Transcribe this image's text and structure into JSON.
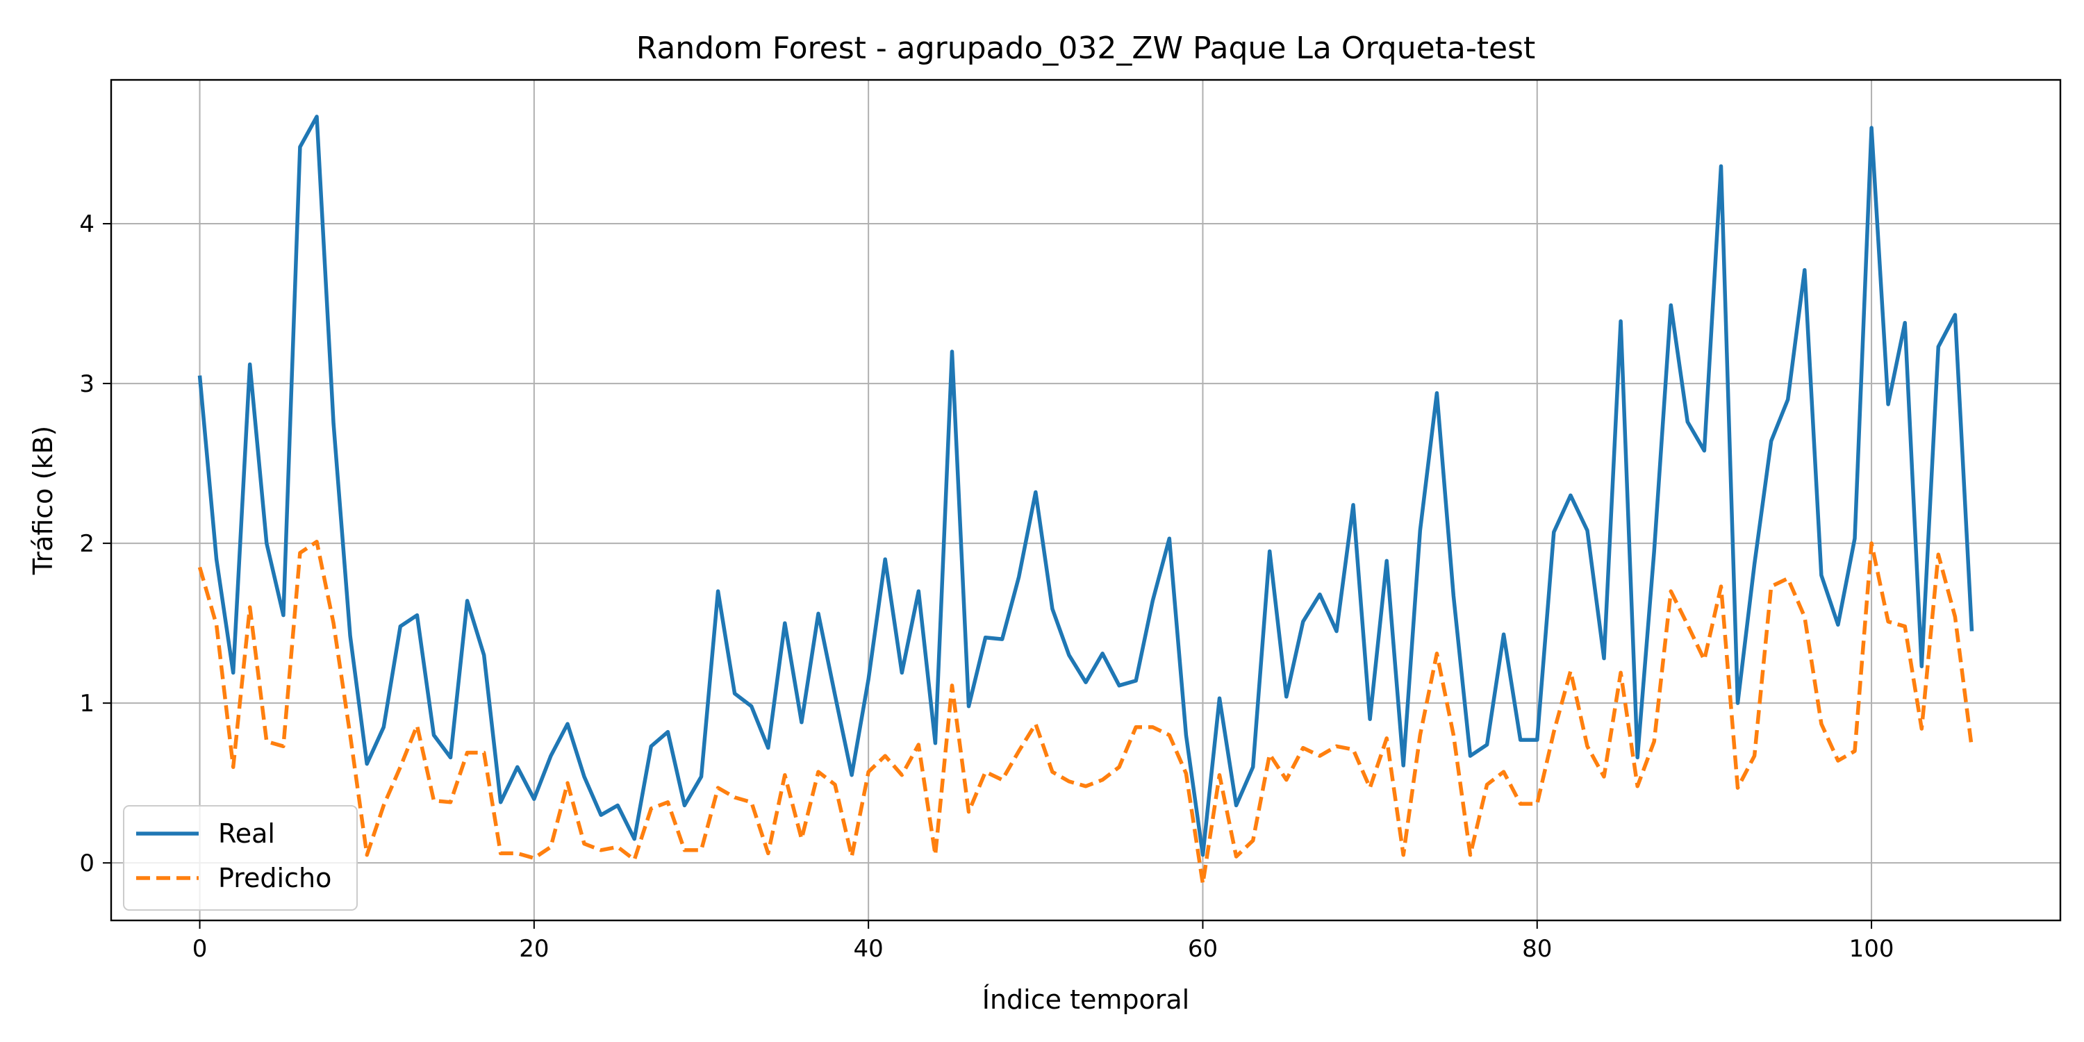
{
  "chart_data": {
    "type": "line",
    "title": "Random Forest - agrupado_032_ZW Paque La Orqueta-test",
    "xlabel": "Índice temporal",
    "ylabel": "Tráfico (kB)",
    "xlim": [
      -5.3,
      111.3
    ],
    "ylim": [
      -0.36,
      4.9
    ],
    "xticks": [
      0,
      20,
      40,
      60,
      80,
      100
    ],
    "yticks": [
      0,
      1,
      2,
      3,
      4
    ],
    "grid": true,
    "legend_position": "lower-left",
    "series": [
      {
        "name": "Real",
        "color": "#1f77b4",
        "style": "solid",
        "values": [
          3.05,
          1.9,
          1.19,
          3.12,
          2.0,
          1.55,
          4.48,
          4.67,
          2.75,
          1.42,
          0.62,
          0.85,
          1.48,
          1.55,
          0.8,
          0.66,
          1.64,
          1.3,
          0.38,
          0.6,
          0.4,
          0.67,
          0.87,
          0.54,
          0.3,
          0.36,
          0.15,
          0.73,
          0.82,
          0.36,
          0.54,
          1.7,
          1.06,
          0.98,
          0.72,
          1.5,
          0.88,
          1.56,
          1.05,
          0.55,
          1.15,
          1.9,
          1.19,
          1.7,
          0.75,
          3.2,
          0.98,
          1.41,
          1.4,
          1.79,
          2.32,
          1.59,
          1.3,
          1.13,
          1.31,
          1.11,
          1.14,
          1.64,
          2.03,
          0.8,
          0.05,
          1.03,
          0.36,
          0.6,
          1.95,
          1.04,
          1.51,
          1.68,
          1.45,
          2.24,
          0.9,
          1.89,
          0.61,
          2.08,
          2.94,
          1.67,
          0.67,
          0.74,
          1.43,
          0.77,
          0.77,
          2.07,
          2.3,
          2.08,
          1.28,
          3.39,
          0.66,
          1.95,
          3.49,
          2.76,
          2.58,
          4.36,
          1.0,
          1.87,
          2.64,
          2.9,
          3.71,
          1.8,
          1.49,
          2.03,
          4.6,
          2.87,
          3.38,
          1.23,
          3.23,
          3.43,
          1.45
        ]
      },
      {
        "name": "Predicho",
        "color": "#ff7f0e",
        "style": "dashed",
        "values": [
          1.85,
          1.49,
          0.6,
          1.6,
          0.76,
          0.73,
          1.94,
          2.01,
          1.5,
          0.8,
          0.05,
          0.36,
          0.6,
          0.86,
          0.39,
          0.38,
          0.69,
          0.69,
          0.06,
          0.06,
          0.03,
          0.1,
          0.5,
          0.12,
          0.08,
          0.1,
          0.02,
          0.34,
          0.38,
          0.08,
          0.08,
          0.47,
          0.41,
          0.38,
          0.06,
          0.55,
          0.15,
          0.57,
          0.49,
          0.04,
          0.57,
          0.67,
          0.55,
          0.74,
          0.05,
          1.11,
          0.32,
          0.57,
          0.52,
          0.7,
          0.87,
          0.57,
          0.51,
          0.48,
          0.52,
          0.6,
          0.85,
          0.85,
          0.8,
          0.56,
          -0.13,
          0.55,
          0.04,
          0.14,
          0.68,
          0.52,
          0.72,
          0.67,
          0.73,
          0.71,
          0.47,
          0.78,
          0.05,
          0.8,
          1.31,
          0.8,
          0.05,
          0.49,
          0.57,
          0.37,
          0.37,
          0.82,
          1.2,
          0.73,
          0.54,
          1.19,
          0.48,
          0.76,
          1.7,
          1.49,
          1.27,
          1.73,
          0.47,
          0.67,
          1.73,
          1.78,
          1.54,
          0.87,
          0.64,
          0.7,
          2.0,
          1.51,
          1.48,
          0.84,
          1.93,
          1.54,
          0.72
        ]
      }
    ]
  }
}
